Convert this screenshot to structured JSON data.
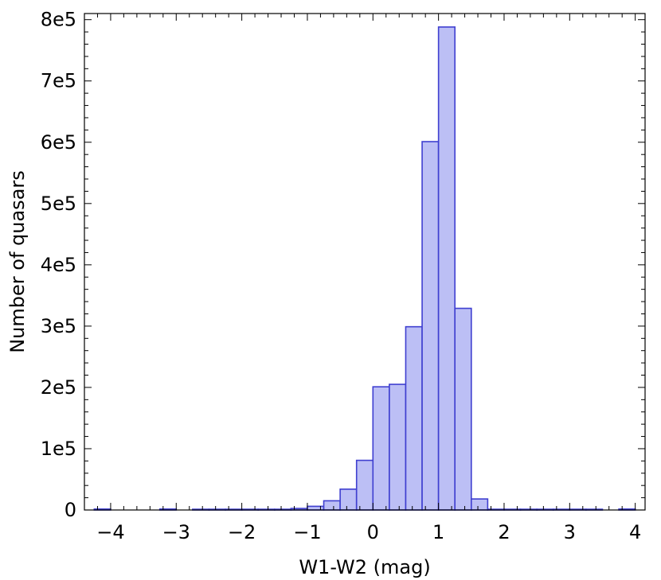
{
  "chart_data": {
    "type": "bar",
    "title": "",
    "xlabel": "W1-W2 (mag)",
    "ylabel": "Number of quasars",
    "xlim": [
      -4.4,
      4.15
    ],
    "ylim": [
      0,
      810000
    ],
    "grid": false,
    "legend": "none",
    "bin_width": 0.25,
    "x_ticks": [
      -4,
      -3,
      -2,
      -1,
      0,
      1,
      2,
      3,
      4
    ],
    "x_tick_labels": [
      "−4",
      "−3",
      "−2",
      "−1",
      "0",
      "1",
      "2",
      "3",
      "4"
    ],
    "y_ticks": [
      0,
      100000,
      200000,
      300000,
      400000,
      500000,
      600000,
      700000,
      800000
    ],
    "y_tick_labels": [
      "0",
      "1e5",
      "2e5",
      "3e5",
      "4e5",
      "5e5",
      "6e5",
      "7e5",
      "8e5"
    ],
    "series": [
      {
        "bins": [
          {
            "x0": -4.25,
            "x1": -4.0,
            "value": 1500
          },
          {
            "x0": -3.25,
            "x1": -3.0,
            "value": 1500
          },
          {
            "x0": -2.75,
            "x1": -2.5,
            "value": 1200
          },
          {
            "x0": -2.5,
            "x1": -2.25,
            "value": 1200
          },
          {
            "x0": -2.25,
            "x1": -2.0,
            "value": 1200
          },
          {
            "x0": -2.0,
            "x1": -1.75,
            "value": 1200
          },
          {
            "x0": -1.75,
            "x1": -1.5,
            "value": 1200
          },
          {
            "x0": -1.5,
            "x1": -1.25,
            "value": 1200
          },
          {
            "x0": -1.25,
            "x1": -1.0,
            "value": 2500
          },
          {
            "x0": -1.0,
            "x1": -0.75,
            "value": 6000
          },
          {
            "x0": -0.75,
            "x1": -0.5,
            "value": 15000
          },
          {
            "x0": -0.5,
            "x1": -0.25,
            "value": 34000
          },
          {
            "x0": -0.25,
            "x1": 0.0,
            "value": 81000
          },
          {
            "x0": 0.0,
            "x1": 0.25,
            "value": 201000
          },
          {
            "x0": 0.25,
            "x1": 0.5,
            "value": 205000
          },
          {
            "x0": 0.5,
            "x1": 0.75,
            "value": 299000
          },
          {
            "x0": 0.75,
            "x1": 1.0,
            "value": 601000
          },
          {
            "x0": 1.0,
            "x1": 1.25,
            "value": 788000
          },
          {
            "x0": 1.25,
            "x1": 1.5,
            "value": 329000
          },
          {
            "x0": 1.5,
            "x1": 1.75,
            "value": 18000
          },
          {
            "x0": 1.75,
            "x1": 2.0,
            "value": 1200
          },
          {
            "x0": 2.0,
            "x1": 2.25,
            "value": 1200
          },
          {
            "x0": 2.25,
            "x1": 2.5,
            "value": 1200
          },
          {
            "x0": 2.5,
            "x1": 2.75,
            "value": 1200
          },
          {
            "x0": 2.75,
            "x1": 3.0,
            "value": 1200
          },
          {
            "x0": 3.0,
            "x1": 3.25,
            "value": 1200
          },
          {
            "x0": 3.25,
            "x1": 3.5,
            "value": 1200
          },
          {
            "x0": 3.75,
            "x1": 4.0,
            "value": 1500
          }
        ]
      }
    ],
    "colors": {
      "bar_fill": "#bcbff5",
      "bar_stroke": "#3f3fd0",
      "axis": "#000000"
    }
  }
}
